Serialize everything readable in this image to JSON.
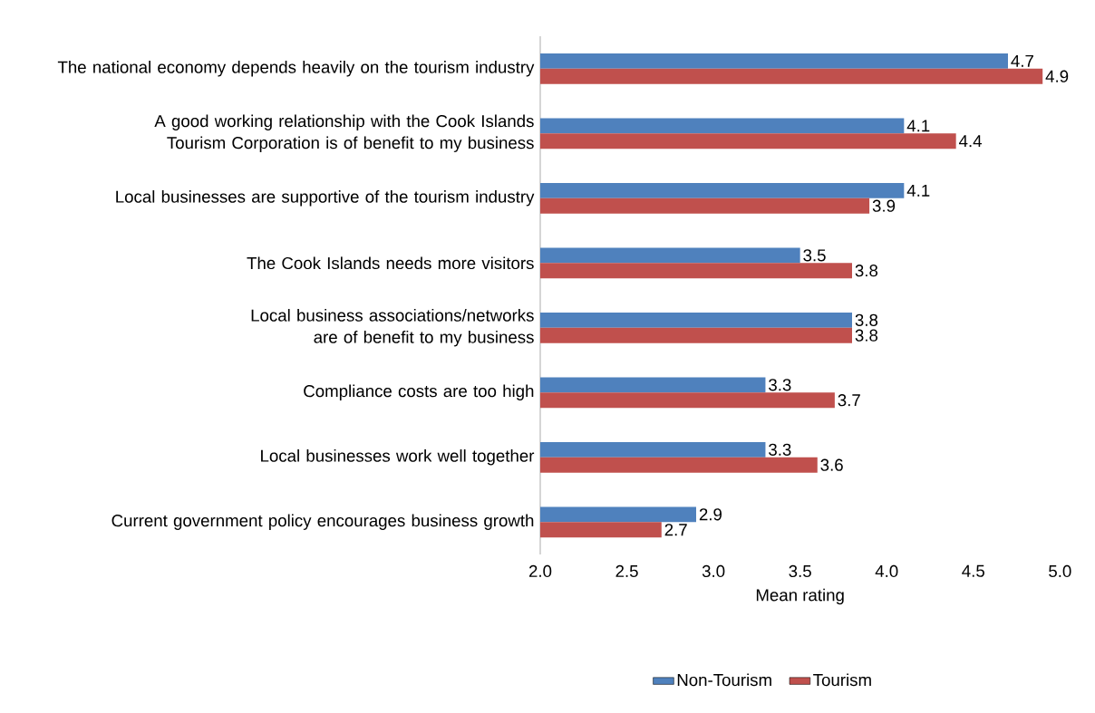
{
  "chart_data": {
    "type": "bar",
    "orientation": "horizontal",
    "xlabel": "Mean rating",
    "categories": [
      "The national economy depends heavily on the tourism industry",
      "A good working relationship with the Cook Islands Tourism Corporation is of benefit to my business",
      "Local businesses are supportive of the tourism industry",
      "The Cook Islands needs more visitors",
      "Local business associations/networks are of benefit to my business",
      "Compliance costs are too high",
      "Local businesses work well together",
      "Current government policy encourages business growth"
    ],
    "series": [
      {
        "name": "Non-Tourism",
        "color": "#4f81bd",
        "values": [
          4.7,
          4.1,
          4.1,
          3.5,
          3.8,
          3.3,
          3.3,
          2.9
        ]
      },
      {
        "name": "Tourism",
        "color": "#c0504d",
        "values": [
          4.9,
          4.4,
          3.9,
          3.8,
          3.8,
          3.7,
          3.6,
          2.7
        ]
      }
    ],
    "xlim": [
      2,
      5
    ],
    "xticks": [
      {
        "value": 2,
        "label": "2.0"
      },
      {
        "value": 2.5,
        "label": "2.5"
      },
      {
        "value": 3,
        "label": "3.0"
      },
      {
        "value": 3.5,
        "label": "3.5"
      },
      {
        "value": 4,
        "label": "4.0"
      },
      {
        "value": 4.5,
        "label": "4.5"
      },
      {
        "value": 5,
        "label": "5.0"
      }
    ],
    "data_labels": true,
    "legend": "bottom"
  }
}
